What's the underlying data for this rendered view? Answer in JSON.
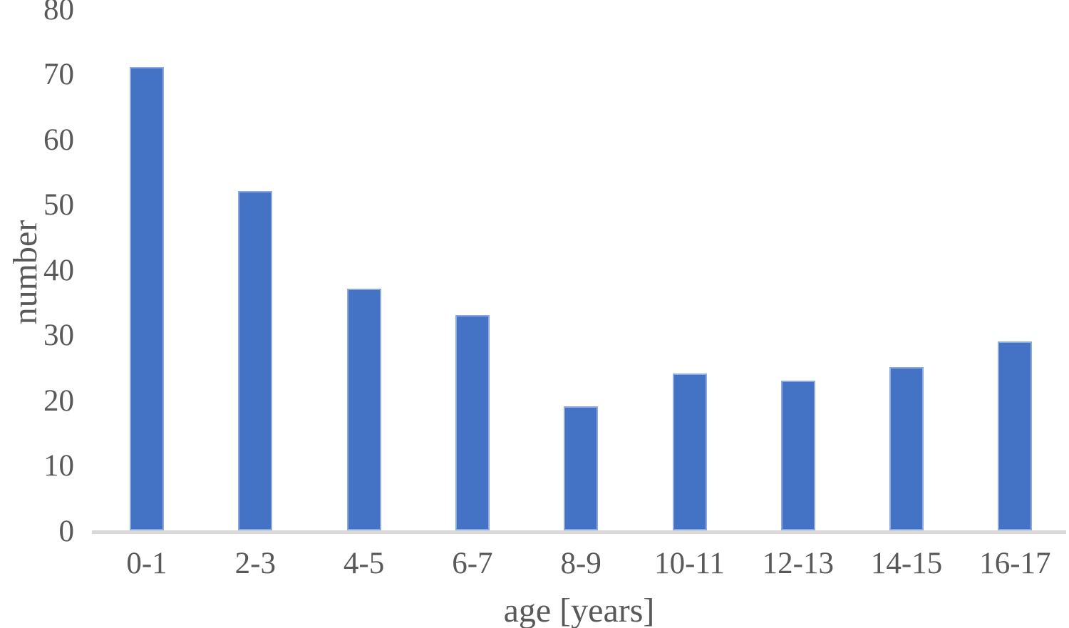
{
  "chart_data": {
    "type": "bar",
    "categories": [
      "0-1",
      "2-3",
      "4-5",
      "6-7",
      "8-9",
      "10-11",
      "12-13",
      "14-15",
      "16-17"
    ],
    "values": [
      71,
      52,
      37,
      33,
      19,
      24,
      23,
      25,
      29
    ],
    "title": "",
    "xlabel": "age [years]",
    "ylabel": "number",
    "ylim": [
      0,
      80
    ],
    "y_ticks": [
      0,
      10,
      20,
      30,
      40,
      50,
      60,
      70,
      80
    ],
    "grid": false,
    "legend": false,
    "bar_color": "#4472C4",
    "bar_border_color": "#8FAADC",
    "axis_line_color": "#D9D9D9",
    "text_color": "#595959",
    "background_color": "#FFFFFF"
  }
}
